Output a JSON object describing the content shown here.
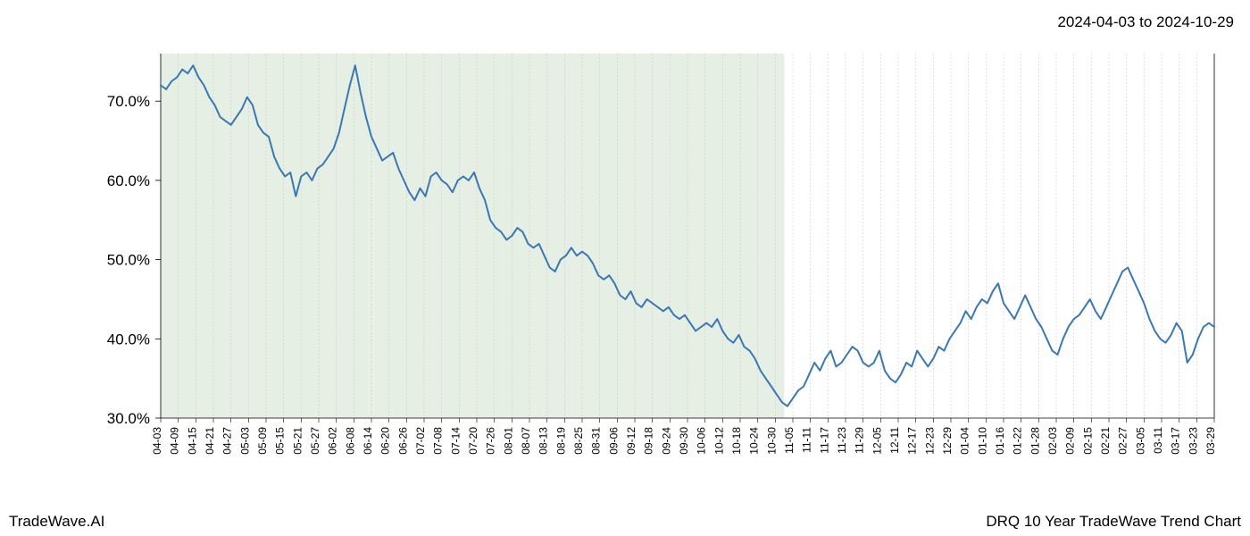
{
  "header": {
    "date_range": "2024-04-03 to 2024-10-29"
  },
  "footer": {
    "branding": "TradeWave.AI",
    "title": "DRQ 10 Year TradeWave Trend Chart"
  },
  "chart": {
    "type": "line",
    "background_color": "#ffffff",
    "plot_border_color": "#000000",
    "plot_border_width": 0.8,
    "highlight_region": {
      "x_start": 0,
      "x_end": 60,
      "fill_color": "#d9e6d4",
      "opacity": 0.65
    },
    "line_color": "#3a78b5",
    "line_width": 2.0,
    "grid": {
      "vertical_color": "#cccccc",
      "vertical_dash": "2,2",
      "vertical_width": 0.6
    },
    "y_axis": {
      "min": 30.0,
      "max": 76.0,
      "ticks": [
        30.0,
        40.0,
        50.0,
        60.0,
        70.0
      ],
      "tick_labels": [
        "30.0%",
        "40.0%",
        "50.0%",
        "60.0%",
        "70.0%"
      ],
      "label_fontsize": 17
    },
    "x_axis": {
      "labels": [
        "04-03",
        "04-09",
        "04-15",
        "04-21",
        "04-27",
        "05-03",
        "05-09",
        "05-15",
        "05-21",
        "05-27",
        "06-02",
        "06-08",
        "06-14",
        "06-20",
        "06-26",
        "07-02",
        "07-08",
        "07-14",
        "07-20",
        "07-26",
        "08-01",
        "08-07",
        "08-13",
        "08-19",
        "08-25",
        "08-31",
        "09-06",
        "09-12",
        "09-18",
        "09-24",
        "09-30",
        "10-06",
        "10-12",
        "10-18",
        "10-24",
        "10-30",
        "11-05",
        "11-11",
        "11-17",
        "11-23",
        "11-29",
        "12-05",
        "12-11",
        "12-17",
        "12-23",
        "12-29",
        "01-04",
        "01-10",
        "01-16",
        "01-22",
        "01-28",
        "02-03",
        "02-09",
        "02-15",
        "02-21",
        "02-27",
        "03-05",
        "03-11",
        "03-17",
        "03-23",
        "03-29"
      ],
      "label_fontsize": 12
    },
    "series": {
      "values": [
        72.0,
        71.5,
        72.5,
        73.0,
        74.0,
        73.5,
        74.5,
        73.0,
        72.0,
        70.5,
        69.5,
        68.0,
        67.5,
        67.0,
        68.0,
        69.0,
        70.5,
        69.5,
        67.0,
        66.0,
        65.5,
        63.0,
        61.5,
        60.5,
        61.0,
        58.0,
        60.5,
        61.0,
        60.0,
        61.5,
        62.0,
        63.0,
        64.0,
        66.0,
        69.0,
        72.0,
        74.5,
        71.0,
        68.0,
        65.5,
        64.0,
        62.5,
        63.0,
        63.5,
        61.5,
        60.0,
        58.5,
        57.5,
        59.0,
        58.0,
        60.5,
        61.0,
        60.0,
        59.5,
        58.5,
        60.0,
        60.5,
        60.0,
        61.0,
        59.0,
        57.5,
        55.0,
        54.0,
        53.5,
        52.5,
        53.0,
        54.0,
        53.5,
        52.0,
        51.5,
        52.0,
        50.5,
        49.0,
        48.5,
        50.0,
        50.5,
        51.5,
        50.5,
        51.0,
        50.5,
        49.5,
        48.0,
        47.5,
        48.0,
        47.0,
        45.5,
        45.0,
        46.0,
        44.5,
        44.0,
        45.0,
        44.5,
        44.0,
        43.5,
        44.0,
        43.0,
        42.5,
        43.0,
        42.0,
        41.0,
        41.5,
        42.0,
        41.5,
        42.5,
        41.0,
        40.0,
        39.5,
        40.5,
        39.0,
        38.5,
        37.5,
        36.0,
        35.0,
        34.0,
        33.0,
        32.0,
        31.5,
        32.5,
        33.5,
        34.0,
        35.5,
        37.0,
        36.0,
        37.5,
        38.5,
        36.5,
        37.0,
        38.0,
        39.0,
        38.5,
        37.0,
        36.5,
        37.0,
        38.5,
        36.0,
        35.0,
        34.5,
        35.5,
        37.0,
        36.5,
        38.5,
        37.5,
        36.5,
        37.5,
        39.0,
        38.5,
        40.0,
        41.0,
        42.0,
        43.5,
        42.5,
        44.0,
        45.0,
        44.5,
        46.0,
        47.0,
        44.5,
        43.5,
        42.5,
        44.0,
        45.5,
        44.0,
        42.5,
        41.5,
        40.0,
        38.5,
        38.0,
        40.0,
        41.5,
        42.5,
        43.0,
        44.0,
        45.0,
        43.5,
        42.5,
        44.0,
        45.5,
        47.0,
        48.5,
        49.0,
        47.5,
        46.0,
        44.5,
        42.5,
        41.0,
        40.0,
        39.5,
        40.5,
        42.0,
        41.0,
        37.0,
        38.0,
        40.0,
        41.5,
        42.0,
        41.5
      ]
    }
  }
}
